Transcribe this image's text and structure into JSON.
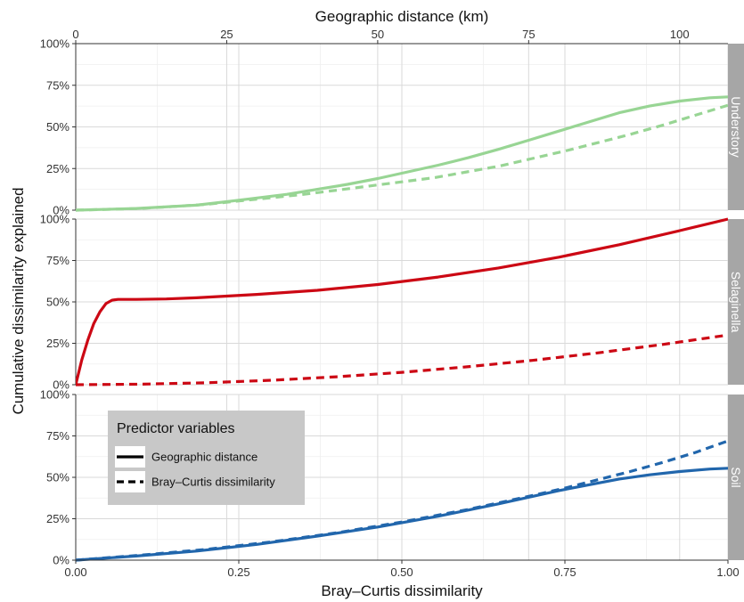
{
  "chart_data": {
    "type": "line",
    "top_axis": {
      "title": "Geographic distance (km)",
      "ticks": [
        "0",
        "25",
        "50",
        "75",
        "100"
      ],
      "tick_values": [
        0,
        25,
        50,
        75,
        100
      ],
      "range": [
        0,
        108
      ]
    },
    "bottom_axis": {
      "title": "Bray–Curtis dissimilarity",
      "ticks": [
        "0.00",
        "0.25",
        "0.50",
        "0.75",
        "1.00"
      ],
      "tick_values": [
        0,
        0.25,
        0.5,
        0.75,
        1.0
      ],
      "range": [
        0,
        1
      ]
    },
    "y_axis": {
      "title": "Cumulative dissimilarity explained",
      "ticks": [
        "0%",
        "25%",
        "50%",
        "75%",
        "100%"
      ],
      "tick_values": [
        0,
        25,
        50,
        75,
        100
      ],
      "range": [
        0,
        100
      ]
    },
    "grid": true,
    "legend": {
      "title": "Predictor variables",
      "placement": "inside bottom panel, top-left",
      "entries": [
        {
          "label": "Geographic distance",
          "linestyle": "solid"
        },
        {
          "label": "Bray–Curtis dissimilarity",
          "linestyle": "dashed"
        }
      ]
    },
    "panels": [
      {
        "strip": "Understory",
        "color": "#98d594",
        "series": [
          {
            "predictor": "Geographic distance",
            "linestyle": "solid",
            "axis": "top",
            "x": [
              0,
              10,
              20,
              27,
              35,
              40,
              45,
              50,
              55,
              60,
              65,
              70,
              75,
              80,
              85,
              90,
              95,
              100,
              105,
              108
            ],
            "y": [
              0,
              1,
              3,
              6,
              9.5,
              12.5,
              15.5,
              19,
              23,
              27,
              31.5,
              36.5,
              42,
              47.5,
              53,
              58.5,
              62.5,
              65.5,
              67.5,
              68
            ]
          },
          {
            "predictor": "Bray–Curtis dissimilarity",
            "linestyle": "dashed",
            "axis": "bottom",
            "x": [
              0,
              0.1,
              0.2,
              0.25,
              0.3,
              0.35,
              0.4,
              0.45,
              0.5,
              0.55,
              0.6,
              0.65,
              0.7,
              0.75,
              0.8,
              0.85,
              0.9,
              0.95,
              1.0
            ],
            "y": [
              0,
              1,
              3.5,
              5.5,
              7.5,
              9.5,
              12,
              14.5,
              17,
              19.5,
              23,
              26.5,
              31,
              35.5,
              40.5,
              45.5,
              51,
              57,
              63
            ]
          }
        ]
      },
      {
        "strip": "Selaginella",
        "color": "#cc0814",
        "series": [
          {
            "predictor": "Geographic distance",
            "linestyle": "solid",
            "axis": "top",
            "x": [
              0,
              1,
              2,
              3,
              4,
              5,
              6,
              7,
              8,
              10,
              15,
              20,
              25,
              30,
              40,
              50,
              60,
              70,
              80,
              90,
              100,
              108
            ],
            "y": [
              0,
              15,
              27,
              37,
              44,
              49,
              51,
              51.5,
              51.5,
              51.5,
              51.8,
              52.5,
              53.5,
              54.5,
              57,
              60.5,
              65,
              70.5,
              77,
              84.5,
              93,
              100
            ]
          },
          {
            "predictor": "Bray–Curtis dissimilarity",
            "linestyle": "dashed",
            "axis": "bottom",
            "x": [
              0,
              0.1,
              0.2,
              0.3,
              0.4,
              0.5,
              0.6,
              0.7,
              0.8,
              0.9,
              1.0
            ],
            "y": [
              0,
              0.3,
              1.2,
              2.7,
              4.8,
              7.5,
              10.8,
              14.7,
              19.2,
              24.3,
              30
            ]
          }
        ]
      },
      {
        "strip": "Soil",
        "color": "#2166ac",
        "series": [
          {
            "predictor": "Geographic distance",
            "linestyle": "solid",
            "axis": "top",
            "x": [
              0,
              10,
              20,
              30,
              40,
              50,
              60,
              70,
              80,
              90,
              95,
              100,
              105,
              108
            ],
            "y": [
              0,
              2.5,
              5.5,
              9.5,
              14.5,
              20,
              26.5,
              34,
              42,
              49,
              51.5,
              53.5,
              55,
              55.5
            ]
          },
          {
            "predictor": "Bray–Curtis dissimilarity",
            "linestyle": "dashed",
            "axis": "bottom",
            "x": [
              0,
              0.1,
              0.2,
              0.3,
              0.4,
              0.5,
              0.6,
              0.7,
              0.75,
              0.8,
              0.85,
              0.9,
              0.95,
              1.0
            ],
            "y": [
              0,
              3,
              6.5,
              11,
              16.5,
              23,
              30.5,
              39,
              43.5,
              48.5,
              53.5,
              59,
              65,
              72
            ]
          }
        ]
      }
    ]
  }
}
